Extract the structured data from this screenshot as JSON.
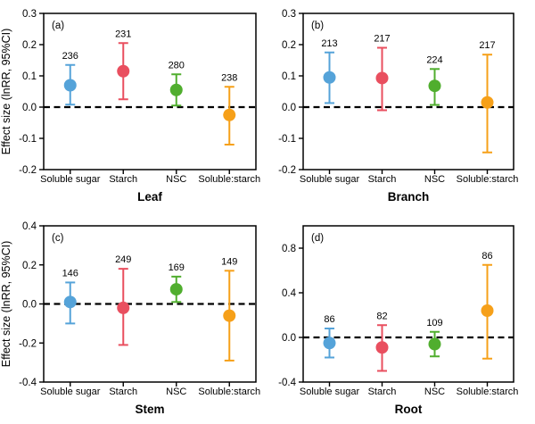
{
  "figure": {
    "y_axis_label": "Effect size (lnRR, 95%CI)",
    "categories": [
      "Soluble sugar",
      "Starch",
      "NSC",
      "Soluble:starch"
    ],
    "category_colors": [
      "#55a3d9",
      "#e94f5f",
      "#50ae2e",
      "#f6a019"
    ],
    "zero_line_color": "#000000"
  },
  "chart_data": [
    {
      "type": "scatter",
      "panel_label": "(a)",
      "xlabel": "Leaf",
      "ylabel": "Effect size (lnRR, 95%CI)",
      "ylim": [
        -0.2,
        0.3
      ],
      "yticks": [
        0.3,
        0.2,
        0.1,
        0.0,
        -0.1,
        -0.2
      ],
      "categories": [
        "Soluble sugar",
        "Starch",
        "NSC",
        "Soluble:starch"
      ],
      "zero_line": "dashed",
      "series": [
        {
          "category": "Soluble sugar",
          "n": 236,
          "mean": 0.07,
          "ci_low": 0.008,
          "ci_high": 0.135,
          "color": "#55a3d9"
        },
        {
          "category": "Starch",
          "n": 231,
          "mean": 0.115,
          "ci_low": 0.025,
          "ci_high": 0.205,
          "color": "#e94f5f"
        },
        {
          "category": "NSC",
          "n": 280,
          "mean": 0.055,
          "ci_low": 0.005,
          "ci_high": 0.105,
          "color": "#50ae2e"
        },
        {
          "category": "Soluble:starch",
          "n": 238,
          "mean": -0.025,
          "ci_low": -0.12,
          "ci_high": 0.065,
          "color": "#f6a019"
        }
      ]
    },
    {
      "type": "scatter",
      "panel_label": "(b)",
      "xlabel": "Branch",
      "ylabel": "",
      "ylim": [
        -0.2,
        0.3
      ],
      "yticks": [
        0.3,
        0.2,
        0.1,
        0.0,
        -0.1,
        -0.2
      ],
      "categories": [
        "Soluble sugar",
        "Starch",
        "NSC",
        "Soluble:starch"
      ],
      "zero_line": "dashed",
      "series": [
        {
          "category": "Soluble sugar",
          "n": 213,
          "mean": 0.095,
          "ci_low": 0.013,
          "ci_high": 0.175,
          "color": "#55a3d9"
        },
        {
          "category": "Starch",
          "n": 217,
          "mean": 0.093,
          "ci_low": -0.01,
          "ci_high": 0.19,
          "color": "#e94f5f"
        },
        {
          "category": "NSC",
          "n": 224,
          "mean": 0.068,
          "ci_low": 0.007,
          "ci_high": 0.122,
          "color": "#50ae2e"
        },
        {
          "category": "Soluble:starch",
          "n": 217,
          "mean": 0.015,
          "ci_low": -0.145,
          "ci_high": 0.168,
          "color": "#f6a019"
        }
      ]
    },
    {
      "type": "scatter",
      "panel_label": "(c)",
      "xlabel": "Stem",
      "ylabel": "Effect size (lnRR, 95%CI)",
      "ylim": [
        -0.4,
        0.4
      ],
      "yticks": [
        0.4,
        0.2,
        0.0,
        -0.2,
        -0.4
      ],
      "categories": [
        "Soluble sugar",
        "Starch",
        "NSC",
        "Soluble:starch"
      ],
      "zero_line": "dashed",
      "series": [
        {
          "category": "Soluble sugar",
          "n": 146,
          "mean": 0.01,
          "ci_low": -0.1,
          "ci_high": 0.11,
          "color": "#55a3d9"
        },
        {
          "category": "Starch",
          "n": 249,
          "mean": -0.02,
          "ci_low": -0.21,
          "ci_high": 0.18,
          "color": "#e94f5f"
        },
        {
          "category": "NSC",
          "n": 169,
          "mean": 0.075,
          "ci_low": 0.01,
          "ci_high": 0.14,
          "color": "#50ae2e"
        },
        {
          "category": "Soluble:starch",
          "n": 149,
          "mean": -0.06,
          "ci_low": -0.29,
          "ci_high": 0.17,
          "color": "#f6a019"
        }
      ]
    },
    {
      "type": "scatter",
      "panel_label": "(d)",
      "xlabel": "Root",
      "ylabel": "",
      "ylim": [
        -0.4,
        1.0
      ],
      "yticks": [
        0.8,
        0.4,
        0.0,
        -0.4
      ],
      "categories": [
        "Soluble sugar",
        "Starch",
        "NSC",
        "Soluble:starch"
      ],
      "zero_line": "dashed",
      "series": [
        {
          "category": "Soluble sugar",
          "n": 86,
          "mean": -0.05,
          "ci_low": -0.18,
          "ci_high": 0.08,
          "color": "#55a3d9"
        },
        {
          "category": "Starch",
          "n": 82,
          "mean": -0.09,
          "ci_low": -0.3,
          "ci_high": 0.11,
          "color": "#e94f5f"
        },
        {
          "category": "NSC",
          "n": 109,
          "mean": -0.06,
          "ci_low": -0.17,
          "ci_high": 0.05,
          "color": "#50ae2e"
        },
        {
          "category": "Soluble:starch",
          "n": 86,
          "mean": 0.24,
          "ci_low": -0.19,
          "ci_high": 0.65,
          "color": "#f6a019"
        }
      ]
    }
  ]
}
